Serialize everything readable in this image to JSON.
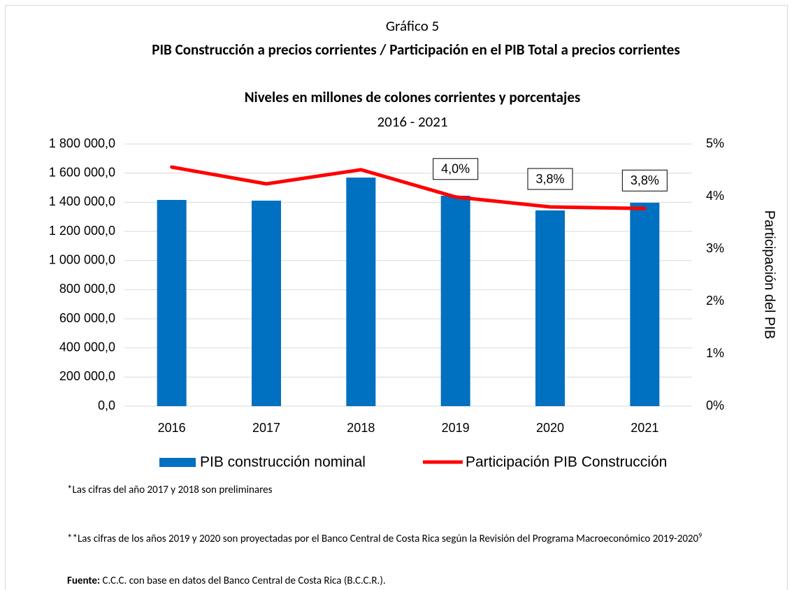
{
  "chart_data": {
    "type": "bar_line",
    "kicker": "Gráfico 5",
    "title": "PIB Construcción a precios corrientes / Participación en el PIB Total a precios corrientes",
    "subtitle": "Niveles en millones de colones corrientes y porcentajes",
    "period": "2016 - 2021",
    "y2_label": "Participación del PIB",
    "categories": [
      "2016",
      "2017",
      "2018",
      "2019",
      "2020",
      "2021"
    ],
    "series": [
      {
        "name": "PIB construcción nominal",
        "color": "#0070c0",
        "kind": "bar",
        "values": [
          1416000,
          1411000,
          1569600,
          1444800,
          1344000,
          1396800
        ]
      },
      {
        "name": "Participación PIB Construcción",
        "color": "#ff0000",
        "kind": "line",
        "axis": "y2",
        "values": [
          4.56,
          4.24,
          4.51,
          3.99,
          3.8,
          3.77
        ],
        "value_labels": [
          null,
          null,
          null,
          "4,0%",
          "3,8%",
          "3,8%"
        ]
      }
    ],
    "ylim": [
      0,
      1800000
    ],
    "yticks": [
      {
        "value": 0,
        "label": "0,0"
      },
      {
        "value": 200000,
        "label": "200 000,0"
      },
      {
        "value": 400000,
        "label": "400 000,0"
      },
      {
        "value": 600000,
        "label": "600 000,0"
      },
      {
        "value": 800000,
        "label": "800 000,0"
      },
      {
        "value": 1000000,
        "label": "1 000 000,0"
      },
      {
        "value": 1200000,
        "label": "1 200 000,0"
      },
      {
        "value": 1400000,
        "label": "1 400 000,0"
      },
      {
        "value": 1600000,
        "label": "1 600 000,0"
      },
      {
        "value": 1800000,
        "label": "1 800 000,0"
      }
    ],
    "y2lim": [
      0,
      5
    ],
    "y2ticks": [
      {
        "value": 0,
        "label": "0%"
      },
      {
        "value": 1,
        "label": "1%"
      },
      {
        "value": 2,
        "label": "2%"
      },
      {
        "value": 3,
        "label": "3%"
      },
      {
        "value": 4,
        "label": "4%"
      },
      {
        "value": 5,
        "label": "5%"
      }
    ],
    "grid": true,
    "legend": "bottom"
  },
  "notes": {
    "preliminary": "*Las cifras del año 2017 y 2018 son preliminares",
    "projected": "**Las cifras de los años 2019 y 2020 son proyectadas por el Banco Central de Costa Rica según la Revisión del Programa Macroeconómico 2019-2020",
    "footnote_ref": "9",
    "source_label": "Fuente:",
    "source_text": " C.C.C. con base en datos del Banco Central de Costa Rica (B.C.C.R.)."
  }
}
